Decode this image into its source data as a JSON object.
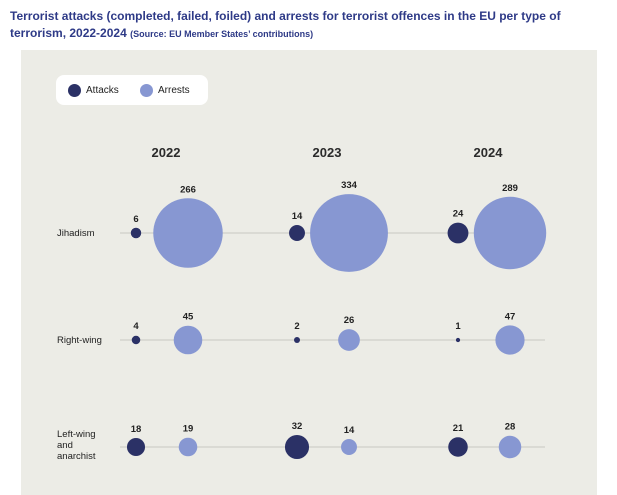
{
  "title": {
    "main": "Terrorist attacks (completed, failed, foiled) and arrests for terrorist offences in the EU per type of terrorism, 2022-2024",
    "source": "(Source: EU Member States’ contributions)"
  },
  "colors": {
    "attacks": "#2b3166",
    "arrests": "#8797d2",
    "line": "#c9c9c1"
  },
  "legend": {
    "attacks": "Attacks",
    "arrests": "Arrests"
  },
  "chart_data": {
    "type": "scatter",
    "encoding": "bubble-size",
    "years": [
      "2022",
      "2023",
      "2024"
    ],
    "categories": [
      "Jihadism",
      "Right-wing",
      "Left-wing and anarchist"
    ],
    "category_labels": [
      [
        "Jihadism"
      ],
      [
        "Right-wing"
      ],
      [
        "Left-wing",
        "and",
        "anarchist"
      ]
    ],
    "series": [
      {
        "name": "Attacks",
        "values": [
          {
            "category": "Jihadism",
            "2022": 6,
            "2023": 14,
            "2024": 24
          },
          {
            "category": "Right-wing",
            "2022": 4,
            "2023": 2,
            "2024": 1
          },
          {
            "category": "Left-wing and anarchist",
            "2022": 18,
            "2023": 32,
            "2024": 21
          }
        ]
      },
      {
        "name": "Arrests",
        "values": [
          {
            "category": "Jihadism",
            "2022": 266,
            "2023": 334,
            "2024": 289
          },
          {
            "category": "Right-wing",
            "2022": 45,
            "2023": 26,
            "2024": 47
          },
          {
            "category": "Left-wing and anarchist",
            "2022": 19,
            "2023": 14,
            "2024": 28
          }
        ]
      }
    ],
    "legend_position": "top-left",
    "grid": false
  }
}
